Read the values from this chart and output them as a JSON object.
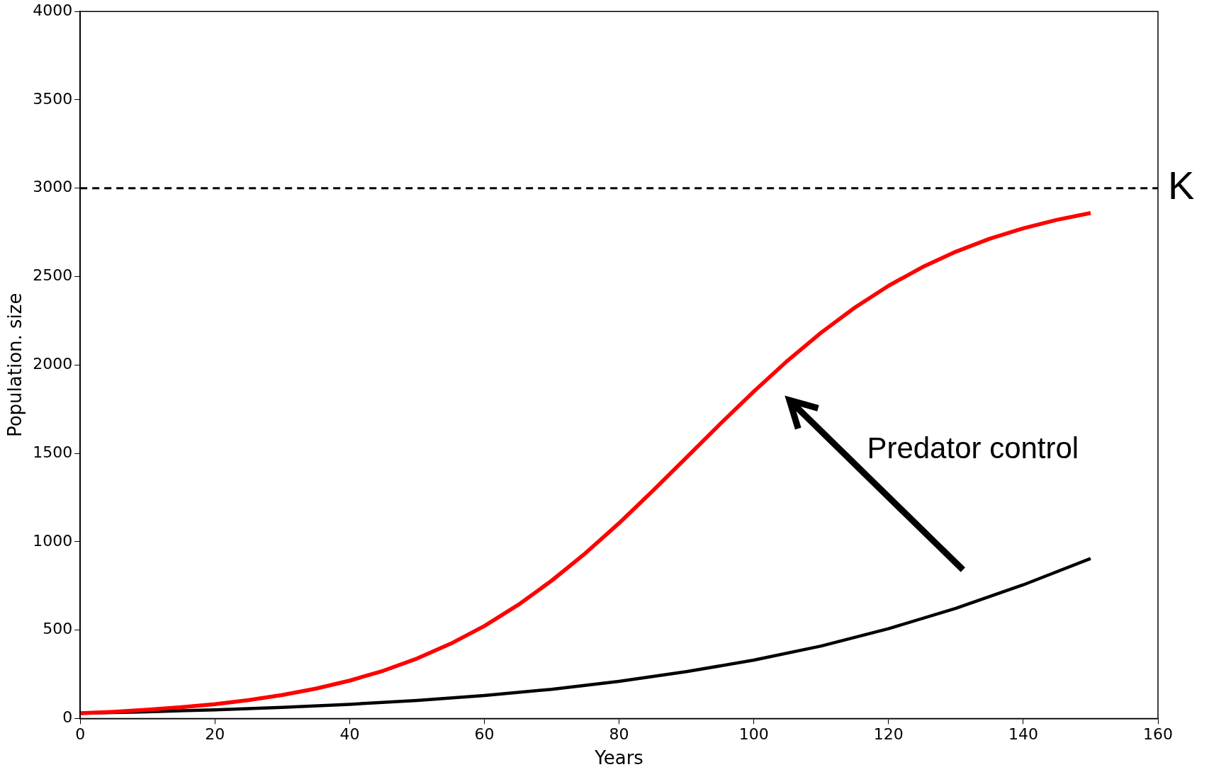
{
  "chart_data": {
    "type": "line",
    "xlabel": "Years",
    "ylabel": "Population. size",
    "xlim": [
      0,
      160
    ],
    "xticks": [
      0,
      20,
      40,
      60,
      80,
      100,
      120,
      140,
      160
    ],
    "ylim": [
      0,
      4000
    ],
    "yticks": [
      0,
      500,
      1000,
      1500,
      2000,
      2500,
      3000,
      3500,
      4000
    ],
    "grid": false,
    "legend": false,
    "marker": "none",
    "line_style": "solid",
    "series": [
      {
        "color": "#ff0000",
        "x": [
          0,
          5,
          10,
          15,
          20,
          25,
          30,
          35,
          40,
          45,
          50,
          55,
          60,
          65,
          70,
          75,
          80,
          85,
          90,
          95,
          100,
          105,
          110,
          115,
          120,
          125,
          130,
          135,
          140,
          145,
          150
        ],
        "values": [
          30,
          38,
          50,
          64,
          81,
          104,
          133,
          169,
          214,
          270,
          339,
          423,
          523,
          642,
          780,
          935,
          1105,
          1288,
          1476,
          1666,
          1850,
          2024,
          2183,
          2325,
          2448,
          2553,
          2641,
          2714,
          2773,
          2821,
          2860
        ]
      },
      {
        "color": "#000000",
        "x": [
          0,
          10,
          20,
          30,
          40,
          50,
          60,
          70,
          80,
          90,
          100,
          110,
          120,
          130,
          140,
          150
        ],
        "values": [
          30,
          38,
          49,
          63,
          80,
          102,
          130,
          165,
          210,
          265,
          330,
          410,
          508,
          623,
          756,
          905
        ]
      }
    ],
    "ref_lines": [
      {
        "axis": "y",
        "value": 3000,
        "label": "K",
        "color": "#000000",
        "line_style": "dashed"
      }
    ],
    "annotations": [
      "Predator control"
    ]
  }
}
